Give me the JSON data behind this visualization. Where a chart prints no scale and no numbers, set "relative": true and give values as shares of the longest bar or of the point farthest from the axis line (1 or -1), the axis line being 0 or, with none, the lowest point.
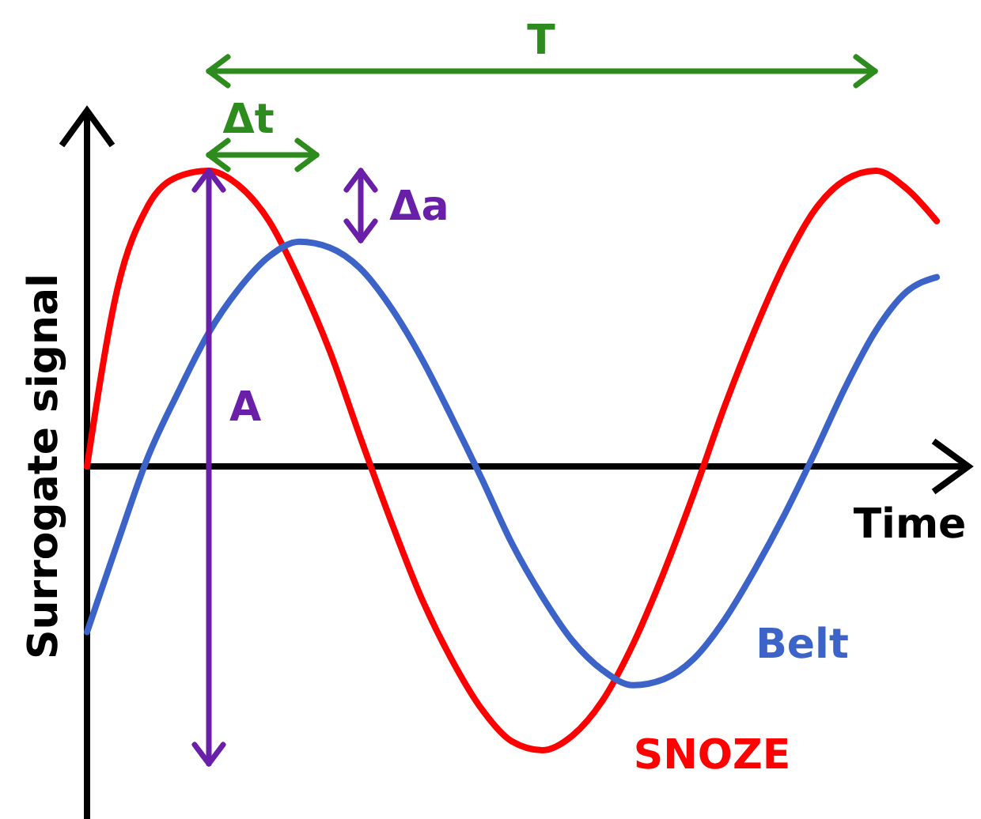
{
  "chart_data": {
    "type": "line",
    "relative": true,
    "xlabel": "Time",
    "ylabel": "Surrogate signal",
    "categories": [
      null,
      null,
      null,
      null,
      null,
      null,
      null,
      null,
      null,
      null,
      null,
      null,
      null,
      null,
      null,
      null,
      null,
      null,
      null,
      null,
      null,
      null,
      null,
      null,
      null,
      null,
      null,
      null,
      null
    ],
    "series": [
      {
        "name": "SNOZE",
        "color": "#ff0000",
        "values": [
          0,
          0.6,
          0.88,
          0.98,
          1.0,
          0.95,
          0.83,
          0.63,
          0.39,
          0.1,
          -0.18,
          -0.44,
          -0.65,
          -0.82,
          -0.93,
          -0.96,
          -0.91,
          -0.79,
          -0.6,
          -0.36,
          -0.09,
          0.2,
          0.46,
          0.69,
          0.87,
          0.97,
          1.0,
          0.94,
          0.83
        ]
      },
      {
        "name": "Belt",
        "color": "#3c64c8",
        "values": [
          -0.56,
          -0.26,
          0.03,
          0.25,
          0.45,
          0.6,
          0.71,
          0.76,
          0.74,
          0.67,
          0.54,
          0.37,
          0.17,
          -0.04,
          -0.26,
          -0.44,
          -0.59,
          -0.69,
          -0.74,
          -0.72,
          -0.65,
          -0.52,
          -0.35,
          -0.16,
          0.05,
          0.27,
          0.46,
          0.59,
          0.64
        ]
      }
    ],
    "annotations": [
      "T",
      "Δt",
      "Δa",
      "A"
    ],
    "line_style": "solid"
  }
}
